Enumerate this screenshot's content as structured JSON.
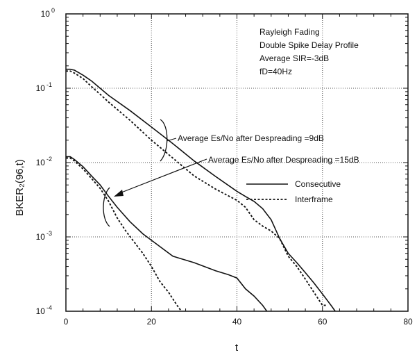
{
  "chart_data": {
    "type": "line",
    "title": "",
    "xlabel": "t",
    "ylabel": "BKER₂(96,t)",
    "xlim": [
      0,
      80
    ],
    "ylim": [
      0.0001,
      1
    ],
    "yscale": "log",
    "grid": true,
    "x_ticks": [
      "0",
      "20",
      "40",
      "60",
      "80"
    ],
    "y_ticks": [
      {
        "base": "10",
        "exp": "0"
      },
      {
        "base": "10",
        "exp": "-1"
      },
      {
        "base": "10",
        "exp": "-2"
      },
      {
        "base": "10",
        "exp": "-3"
      },
      {
        "base": "10",
        "exp": "-4"
      }
    ],
    "info_lines": [
      "Rayleigh Fading",
      "Double Spike Delay Profile",
      "Average SIR=-3dB",
      "fD=40Hz"
    ],
    "annotations": [
      "Average Es/No after Despreading =9dB",
      "Average Es/No after Despreading =15dB"
    ],
    "legend": {
      "placement": "right",
      "entries": [
        {
          "label": "Consecutive",
          "style": "solid"
        },
        {
          "label": "Interframe",
          "style": "dashed"
        }
      ]
    },
    "series": [
      {
        "group": "9dB",
        "style": "solid",
        "x": [
          0,
          1,
          2,
          4,
          6,
          8,
          10,
          15,
          20,
          25,
          30,
          35,
          40,
          42,
          44,
          46,
          48,
          50,
          52,
          54,
          56,
          58,
          60,
          62,
          63
        ],
        "y": [
          0.18,
          0.18,
          0.175,
          0.15,
          0.125,
          0.1,
          0.08,
          0.05,
          0.03,
          0.018,
          0.0105,
          0.0065,
          0.0041,
          0.0035,
          0.003,
          0.0024,
          0.0017,
          0.00095,
          0.0006,
          0.00045,
          0.00033,
          0.00024,
          0.00017,
          0.00012,
          0.0001
        ]
      },
      {
        "group": "9dB",
        "style": "dashed",
        "x": [
          0,
          1,
          2,
          4,
          6,
          8,
          10,
          15,
          20,
          25,
          30,
          35,
          40,
          42,
          44,
          46,
          48,
          50,
          52,
          54,
          56,
          58,
          60,
          61
        ],
        "y": [
          0.17,
          0.17,
          0.16,
          0.135,
          0.105,
          0.083,
          0.065,
          0.037,
          0.02,
          0.0115,
          0.0066,
          0.0044,
          0.0031,
          0.0025,
          0.0017,
          0.0014,
          0.0012,
          0.00095,
          0.00055,
          0.0004,
          0.00027,
          0.00018,
          0.00012,
          0.00012
        ]
      },
      {
        "group": "15dB",
        "style": "solid",
        "x": [
          0,
          1,
          2,
          4,
          6,
          8,
          10,
          12,
          15,
          18,
          20,
          25,
          30,
          35,
          38,
          40,
          42,
          44,
          46,
          47
        ],
        "y": [
          0.012,
          0.012,
          0.011,
          0.0088,
          0.0066,
          0.005,
          0.0035,
          0.0025,
          0.0016,
          0.0011,
          0.0009,
          0.00055,
          0.00045,
          0.00035,
          0.00031,
          0.00028,
          0.0002,
          0.00016,
          0.00012,
          0.0001
        ]
      },
      {
        "group": "15dB",
        "style": "dashed",
        "x": [
          0,
          1,
          2,
          4,
          6,
          8,
          10,
          12,
          14,
          16,
          18,
          20,
          22,
          24,
          26,
          27
        ],
        "y": [
          0.0115,
          0.0115,
          0.0105,
          0.0082,
          0.0061,
          0.0045,
          0.003,
          0.0018,
          0.0012,
          0.00085,
          0.0006,
          0.0004,
          0.00025,
          0.00018,
          0.00012,
          0.0001
        ]
      }
    ]
  }
}
